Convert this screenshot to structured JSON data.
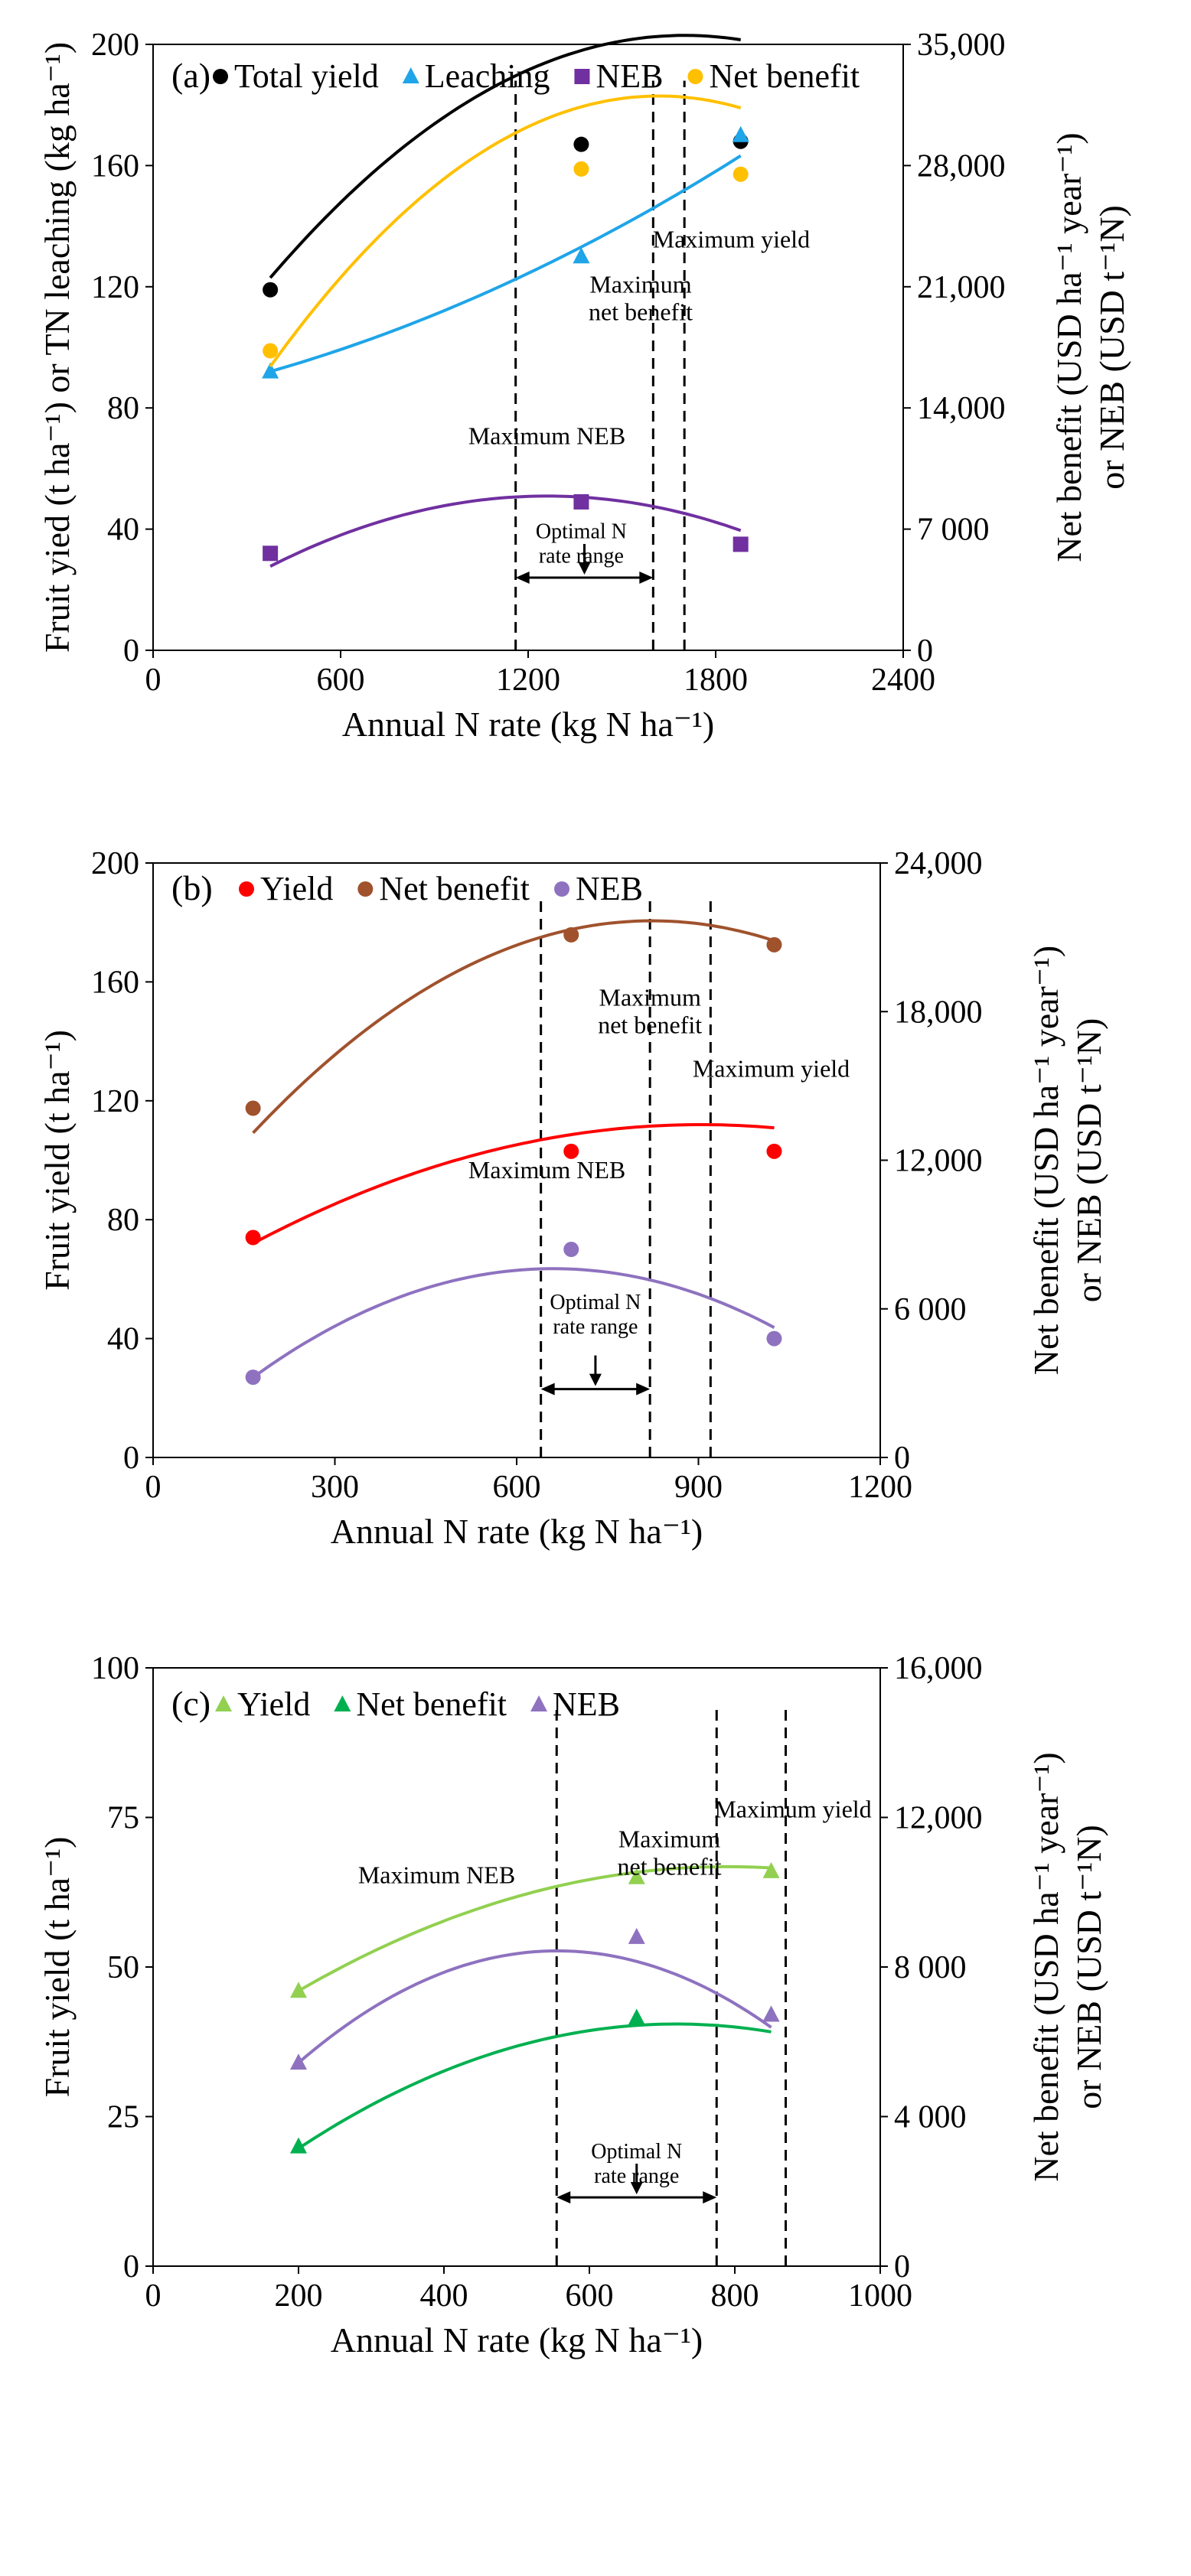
{
  "chart_data": [
    {
      "type": "line",
      "panel_label": "(a)",
      "xlabel": "Annual N rate (kg N ha⁻¹)",
      "ylabel_left": "Fruit yied (t ha⁻¹) or TN leaching (kg ha⁻¹)",
      "ylabel_right_line1": "Net benefit (USD ha⁻¹ year⁻¹)",
      "ylabel_right_line2": "or NEB (USD t⁻¹N)",
      "xlim": [
        0,
        2400
      ],
      "ylim_left": [
        0,
        200
      ],
      "ylim_right": [
        0,
        35000
      ],
      "x_ticks": [
        "0",
        "600",
        "1200",
        "1800",
        "2400"
      ],
      "y_left_ticks": [
        "0",
        "40",
        "80",
        "120",
        "160",
        "200"
      ],
      "y_right_ticks": [
        "0",
        "7 000",
        "14,000",
        "21,000",
        "28,000",
        "35,000"
      ],
      "legend_position": "top",
      "grid": false,
      "series": [
        {
          "name": "Total yield",
          "marker": "circle",
          "color": "#000000",
          "axis": "left",
          "x": [
            375,
            1370,
            1880
          ],
          "y": [
            119,
            167,
            168
          ],
          "curve": [
            -4.55e-05,
            0.1548,
            71.3
          ]
        },
        {
          "name": "Leaching",
          "marker": "triangle",
          "color": "#1fa5e8",
          "axis": "left",
          "x": [
            375,
            1370,
            1880
          ],
          "y": [
            92,
            130,
            170
          ],
          "curve": [
            1.18e-05,
            0.0207,
            82.6
          ]
        },
        {
          "name": "NEB",
          "marker": "square",
          "color": "#7030a0",
          "axis": "left",
          "x": [
            375,
            1370,
            1880
          ],
          "y": [
            32,
            49,
            35
          ],
          "curve": [
            -2.96e-05,
            0.0746,
            3.91
          ]
        },
        {
          "name": "Net benefit",
          "marker": "circle",
          "color": "#ffc000",
          "axis": "right",
          "x": [
            375,
            1370,
            1880
          ],
          "y": [
            17300,
            27800,
            27500
          ],
          "curve": [
            -0.0101,
            32.7,
            5550
          ]
        }
      ],
      "annotations": [
        {
          "text": "Maximum NEB",
          "x": 1260,
          "y": 68
        },
        {
          "text": "Maximum\nnet benefit",
          "x": 1560,
          "y": 118
        },
        {
          "text": "Maximum yield",
          "x": 1850,
          "y": 133
        },
        {
          "text": "Optimal N\nrate range",
          "x": 1370,
          "y": 37
        }
      ],
      "vlines": [
        1160,
        1600,
        1700
      ],
      "range": [
        1160,
        1600
      ],
      "range_y": 24
    },
    {
      "type": "line",
      "panel_label": "(b)",
      "xlabel": "Annual N rate (kg N ha⁻¹)",
      "ylabel_left": "Fruit yield (t ha⁻¹)",
      "ylabel_right_line1": "Net benefit (USD ha⁻¹ year⁻¹)",
      "ylabel_right_line2": "or NEB (USD t⁻¹N)",
      "xlim": [
        0,
        1200
      ],
      "ylim_left": [
        0,
        200
      ],
      "ylim_right": [
        0,
        24000
      ],
      "x_ticks": [
        "0",
        "300",
        "600",
        "900",
        "1200"
      ],
      "y_left_ticks": [
        "0",
        "40",
        "80",
        "120",
        "160",
        "200"
      ],
      "y_right_ticks": [
        "0",
        "6 000",
        "12,000",
        "18,000",
        "24,000"
      ],
      "legend_position": "top-left",
      "grid": false,
      "series": [
        {
          "name": "Yield",
          "marker": "circle",
          "color": "#ff0000",
          "axis": "left",
          "x": [
            165,
            690,
            1025
          ],
          "y": [
            74,
            103,
            103
          ],
          "curve": [
            -7.31e-05,
            0.1322,
            52.2
          ]
        },
        {
          "name": "Net benefit",
          "marker": "circle",
          "color": "#a0522d",
          "axis": "right",
          "x": [
            165,
            690,
            1025
          ],
          "y": [
            14100,
            21100,
            20700
          ],
          "curve": [
            -0.01977,
            32.55,
            8269
          ]
        },
        {
          "name": "NEB",
          "marker": "circle",
          "color": "#8e72bf",
          "axis": "left",
          "x": [
            165,
            690,
            1025
          ],
          "y": [
            27,
            70,
            40
          ],
          "curve": [
            -0.000149,
            0.1968,
            -1.46
          ]
        }
      ],
      "annotations": [
        {
          "text": "Maximum\nnet benefit",
          "x": 820,
          "y": 152
        },
        {
          "text": "Maximum yield",
          "x": 1020,
          "y": 128
        },
        {
          "text": "Maximum NEB",
          "x": 650,
          "y": 94
        },
        {
          "text": "Optimal N\nrate range",
          "x": 730,
          "y": 50
        }
      ],
      "vlines": [
        640,
        820,
        920
      ],
      "range": [
        640,
        820
      ],
      "range_y": 23
    },
    {
      "type": "line",
      "panel_label": "(c)",
      "xlabel": "Annual N rate (kg N ha⁻¹)",
      "ylabel_left": "Fruit yield (t ha⁻¹)",
      "ylabel_right_line1": "Net benefit (USD ha⁻¹ year⁻¹)",
      "ylabel_right_line2": "or NEB (USD t⁻¹N)",
      "xlim": [
        0,
        1000
      ],
      "ylim_left": [
        0,
        100
      ],
      "ylim_right": [
        0,
        16000
      ],
      "x_ticks": [
        "0",
        "200",
        "400",
        "600",
        "800",
        "1000"
      ],
      "y_left_ticks": [
        "0",
        "25",
        "50",
        "75",
        "100"
      ],
      "y_right_ticks": [
        "0",
        "4 000",
        "8 000",
        "12,000",
        "16,000"
      ],
      "legend_position": "top-left",
      "grid": false,
      "series": [
        {
          "name": "Yield",
          "marker": "triangle",
          "color": "#92d050",
          "axis": "left",
          "x": [
            200,
            665,
            850
          ],
          "y": [
            46,
            65,
            66
          ],
          "curve": [
            -5.96e-05,
            0.0942,
            29.55
          ]
        },
        {
          "name": "Net benefit",
          "marker": "triangle",
          "color": "#00b050",
          "axis": "right",
          "x": [
            200,
            665,
            850
          ],
          "y": [
            3200,
            6640,
            6720
          ],
          "curve": [
            -0.01233,
            17.74,
            94.5
          ]
        },
        {
          "name": "NEB",
          "marker": "triangle",
          "color": "#8e72bf",
          "axis": "left",
          "x": [
            200,
            665,
            850
          ],
          "y": [
            34,
            55,
            42
          ],
          "curve": [
            -0.0001477,
            0.1642,
            7.06
          ]
        }
      ],
      "annotations": [
        {
          "text": "Maximum NEB",
          "x": 390,
          "y": 64
        },
        {
          "text": "Maximum\nnet benefit",
          "x": 710,
          "y": 70
        },
        {
          "text": "Maximum yield",
          "x": 880,
          "y": 75
        },
        {
          "text": "Optimal N\nrate range",
          "x": 665,
          "y": 18
        }
      ],
      "vlines": [
        555,
        775,
        870
      ],
      "range": [
        555,
        775
      ],
      "range_y": 11.5
    }
  ]
}
